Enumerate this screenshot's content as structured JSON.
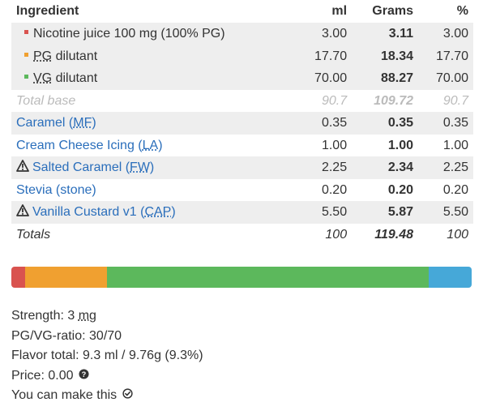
{
  "table": {
    "headers": {
      "ingredient": "Ingredient",
      "ml": "ml",
      "grams": "Grams",
      "percent": "%"
    },
    "base_rows": [
      {
        "label": "Nicotine juice 100 mg (100% PG)",
        "pre": "",
        "abbr": "",
        "post": "",
        "color": "#d9534f",
        "ml": "3.00",
        "grams": "3.11",
        "percent": "3.00"
      },
      {
        "label": "",
        "pre": "",
        "abbr": "PG",
        "post": " dilutant",
        "color": "#f0a030",
        "ml": "17.70",
        "grams": "18.34",
        "percent": "17.70"
      },
      {
        "label": "",
        "pre": "",
        "abbr": "VG",
        "post": " dilutant",
        "color": "#5cb85c",
        "ml": "70.00",
        "grams": "88.27",
        "percent": "70.00"
      }
    ],
    "total_base": {
      "label": "Total base",
      "ml": "90.7",
      "grams": "109.72",
      "percent": "90.7"
    },
    "flavors": [
      {
        "name": "Caramel (",
        "abbr": "MF",
        "close": ")",
        "warn": false,
        "ml": "0.35",
        "grams": "0.35",
        "percent": "0.35"
      },
      {
        "name": "Cream Cheese Icing (",
        "abbr": "LA",
        "close": ")",
        "warn": false,
        "ml": "1.00",
        "grams": "1.00",
        "percent": "1.00"
      },
      {
        "name": "Salted Caramel (",
        "abbr": "FW",
        "close": ")",
        "warn": true,
        "ml": "2.25",
        "grams": "2.34",
        "percent": "2.25"
      },
      {
        "name": "Stevia (stone)",
        "abbr": "",
        "close": "",
        "warn": false,
        "ml": "0.20",
        "grams": "0.20",
        "percent": "0.20"
      },
      {
        "name": "Vanilla Custard v1 (",
        "abbr": "CAP",
        "close": ")",
        "warn": true,
        "ml": "5.50",
        "grams": "5.87",
        "percent": "5.50"
      }
    ],
    "totals": {
      "label": "Totals",
      "ml": "100",
      "grams": "119.48",
      "percent": "100"
    }
  },
  "composition_bar": [
    {
      "name": "nicotine",
      "percent": 3.0,
      "color": "#d9534f"
    },
    {
      "name": "pg",
      "percent": 17.7,
      "color": "#f0a030"
    },
    {
      "name": "vg",
      "percent": 70.0,
      "color": "#5cb85c"
    },
    {
      "name": "flavor",
      "percent": 9.3,
      "color": "#46a8d8"
    }
  ],
  "info": {
    "strength_label": "Strength: 3 ",
    "strength_unit": "mg",
    "ratio": "PG/VG-ratio: 30/70",
    "flavor_total": "Flavor total: 9.3 ml / 9.76g (9.3%)",
    "price": "Price: 0.00",
    "can_make": "You can make this"
  },
  "icons": {
    "warning": "warning-triangle-icon",
    "help": "question-circle-icon",
    "check": "check-circle-icon"
  }
}
